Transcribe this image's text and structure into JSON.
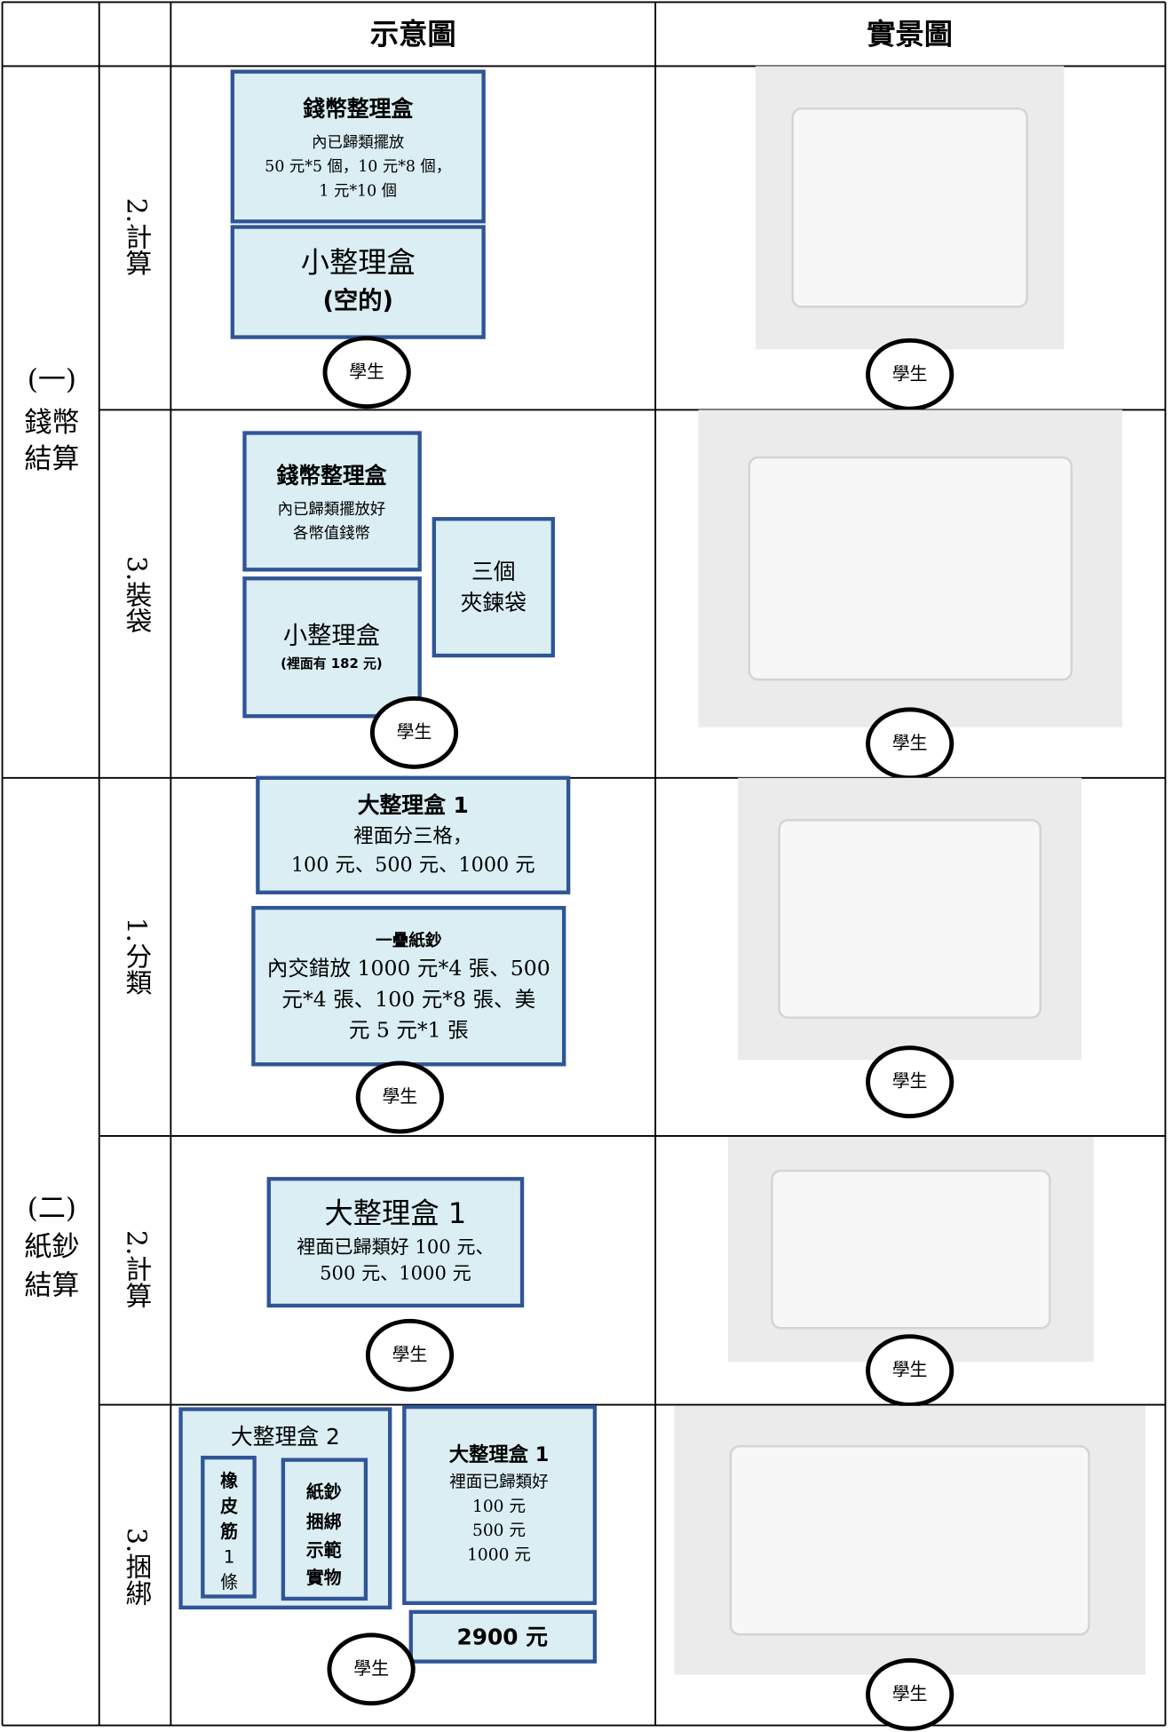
{
  "table": {
    "header": [
      "示意圖",
      "實景圖"
    ],
    "groups": [
      {
        "label": [
          "(一)",
          "錢幣",
          "結算"
        ],
        "steps": [
          {
            "label": "2.計算",
            "boxes": [
              {
                "title": "錢幣整理盒",
                "lines": [
                  "內已歸類擺放",
                  "50 元*5 個，10 元*8 個，",
                  "1 元*10 個"
                ]
              },
              {
                "title": "小整理盒",
                "lines": [
                  "(空的)"
                ]
              }
            ],
            "diagram_student": "學生",
            "photo_student": "學生"
          },
          {
            "label": "3.裝袋",
            "boxes": [
              {
                "title": "錢幣整理盒",
                "lines": [
                  "內已歸類擺放好",
                  "各幣值錢幣"
                ]
              },
              {
                "title": "小整理盒",
                "lines": [
                  "(裡面有 182 元)"
                ]
              },
              {
                "title": "三個",
                "lines": [
                  "夾鍊袋"
                ]
              }
            ],
            "diagram_student": "學生",
            "photo_student": "學生"
          }
        ]
      },
      {
        "label": [
          "(二)",
          "紙鈔",
          "結算"
        ],
        "steps": [
          {
            "label": "1.分類",
            "boxes": [
              {
                "title": "大整理盒 1",
                "lines": [
                  "裡面分三格，",
                  "100 元、500 元、1000 元"
                ]
              },
              {
                "title": "一疊紙鈔",
                "lines": [
                  "內交錯放 1000 元*4 張、500",
                  "元*4 張、100 元*8 張、美",
                  "元 5 元*1 張"
                ]
              }
            ],
            "diagram_student": "學生",
            "photo_student": "學生"
          },
          {
            "label": "2.計算",
            "boxes": [
              {
                "title": "大整理盒 1",
                "lines": [
                  "裡面已歸類好 100 元、",
                  "500 元、1000 元"
                ]
              }
            ],
            "diagram_student": "學生",
            "photo_student": "學生"
          },
          {
            "label": "3.捆綁",
            "boxes": [
              {
                "title": "大整理盒 2",
                "items": [
                  {
                    "lines": [
                      "橡",
                      "皮",
                      "筋",
                      "1",
                      "條"
                    ]
                  },
                  {
                    "lines": [
                      "紙鈔",
                      "捆綁",
                      "示範",
                      "實物"
                    ]
                  }
                ]
              },
              {
                "title": "大整理盒 1",
                "lines": [
                  "裡面已歸類好",
                  "100 元",
                  "500 元",
                  "1000 元"
                ]
              },
              {
                "title": "2900 元"
              }
            ],
            "diagram_student": "學生",
            "photo_student": "學生"
          }
        ]
      }
    ]
  }
}
